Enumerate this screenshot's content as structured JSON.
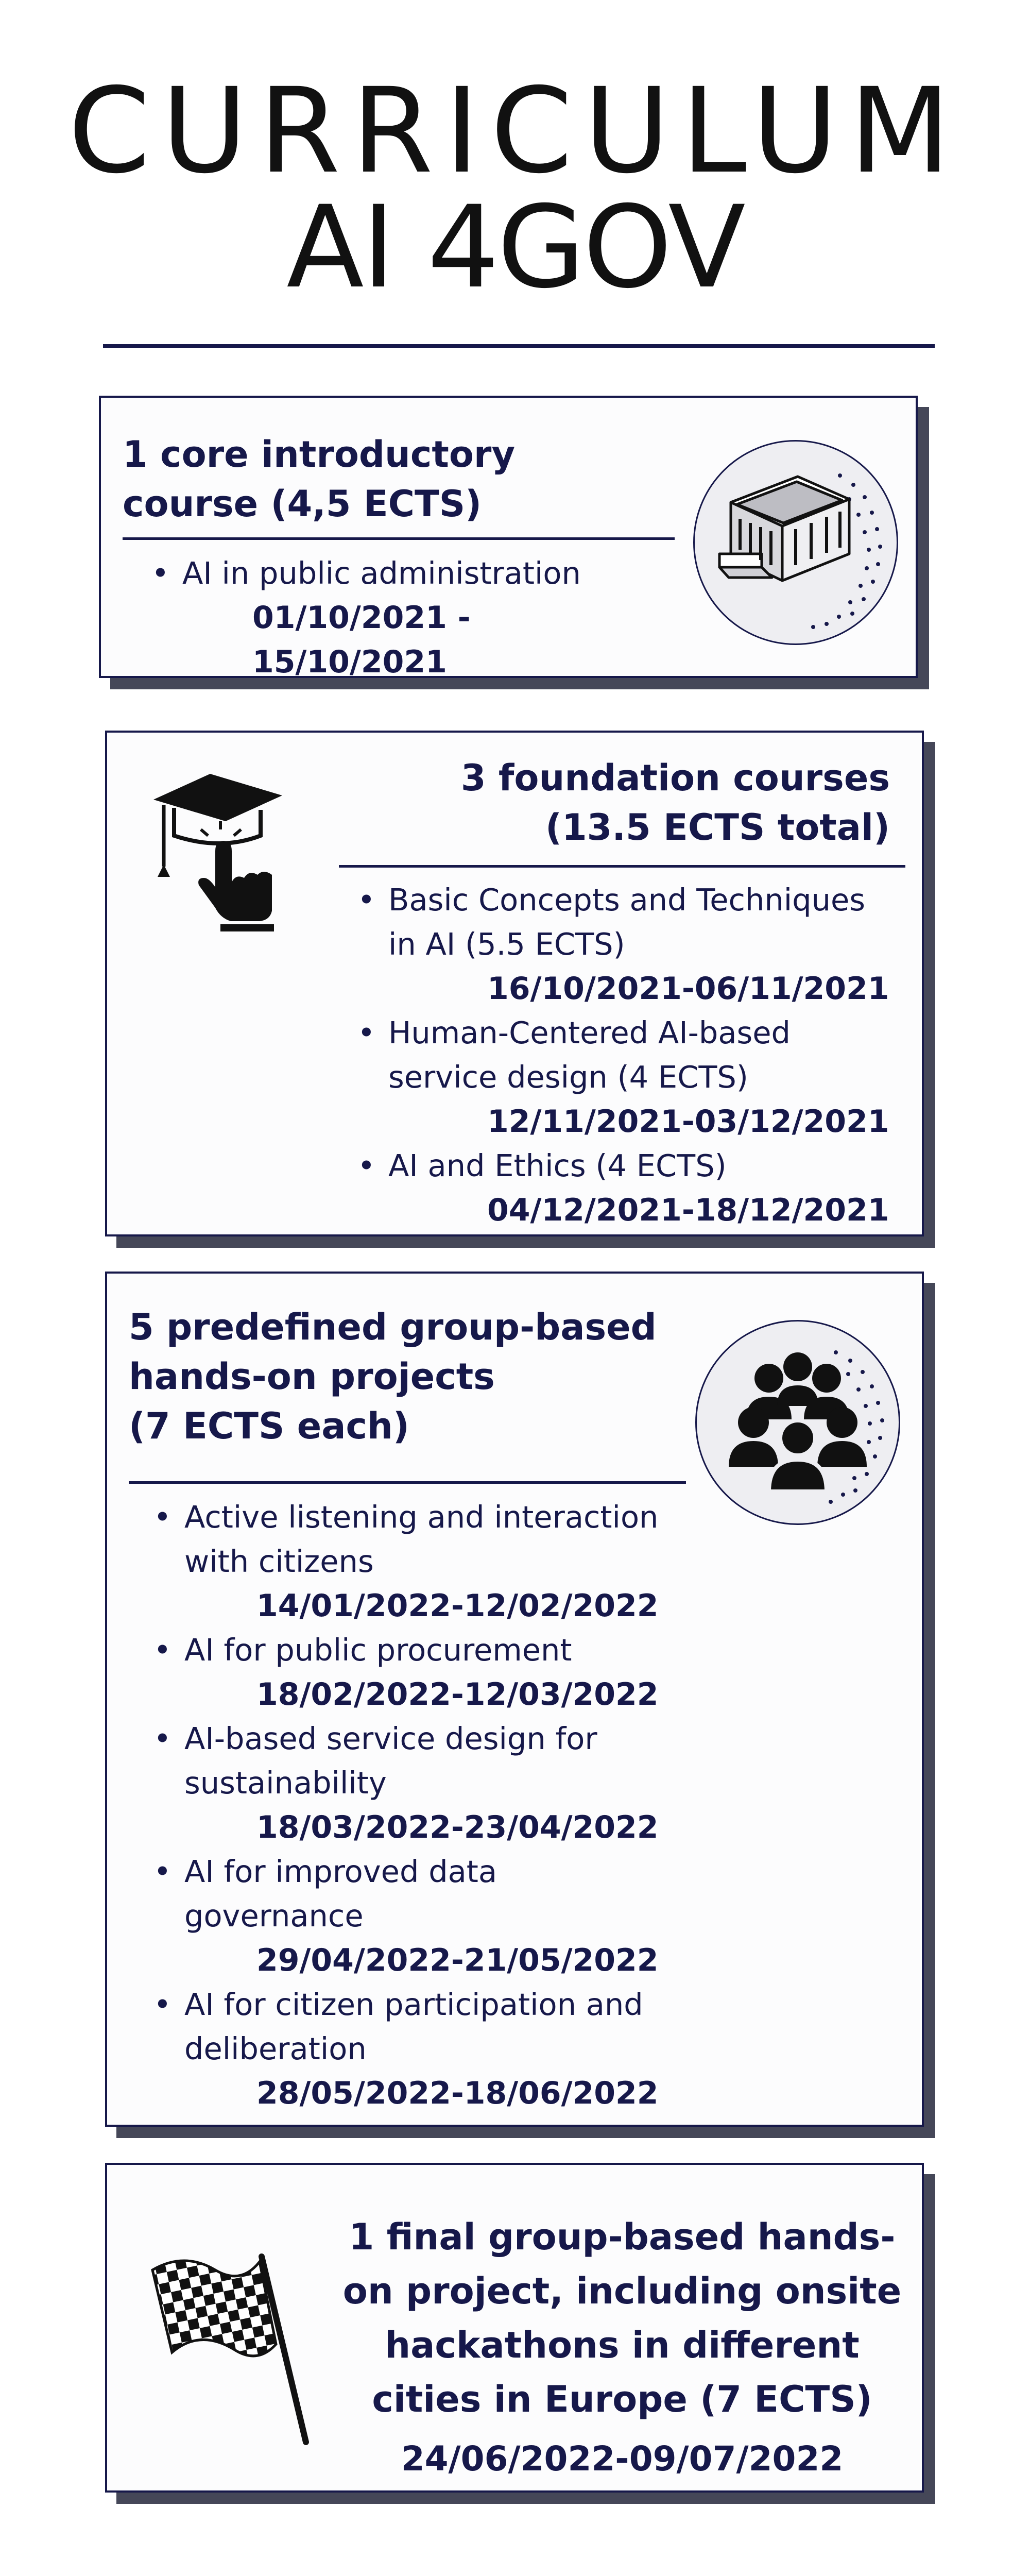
{
  "header": {
    "line1": "CURRICULUM",
    "line2": "AI 4GOV"
  },
  "sections": [
    {
      "heading": [
        "1 core introductory",
        "course (4,5 ECTS)"
      ],
      "icon": "government-building-icon",
      "items": [
        {
          "text": "AI in public administration",
          "dates": "01/10/2021 - 15/10/2021"
        }
      ]
    },
    {
      "heading": [
        "3 foundation courses",
        "(13.5 ECTS total)"
      ],
      "icon": "graduation-cap-pointer-icon",
      "items": [
        {
          "text": "Basic Concepts and Techniques in AI (5.5 ECTS)",
          "dates": "16/10/2021-06/11/2021"
        },
        {
          "text": "Human-Centered AI-based service design (4 ECTS)",
          "dates": "12/11/2021-03/12/2021"
        },
        {
          "text": "AI and Ethics (4 ECTS)",
          "dates": "04/12/2021-18/12/2021"
        }
      ]
    },
    {
      "heading": [
        "5 predefined group-based",
        "hands-on projects",
        "(7 ECTS each)"
      ],
      "icon": "group-people-icon",
      "items": [
        {
          "text": "Active listening and interaction with citizens",
          "dates": "14/01/2022-12/02/2022"
        },
        {
          "text": "AI for public procurement",
          "dates": "18/02/2022-12/03/2022"
        },
        {
          "text": "AI-based service design for sustainability",
          "dates": "18/03/2022-23/04/2022"
        },
        {
          "text": "AI for improved data governance",
          "dates": "29/04/2022-21/05/2022"
        },
        {
          "text": "AI for citizen participation and deliberation",
          "dates": "28/05/2022-18/06/2022"
        }
      ]
    },
    {
      "heading": [
        "1 final group-based hands-",
        "on project, including onsite",
        "hackathons in different",
        "cities in Europe (7 ECTS)"
      ],
      "icon": "checkered-flag-icon",
      "dates": "24/06/2022-09/07/2022"
    }
  ]
}
